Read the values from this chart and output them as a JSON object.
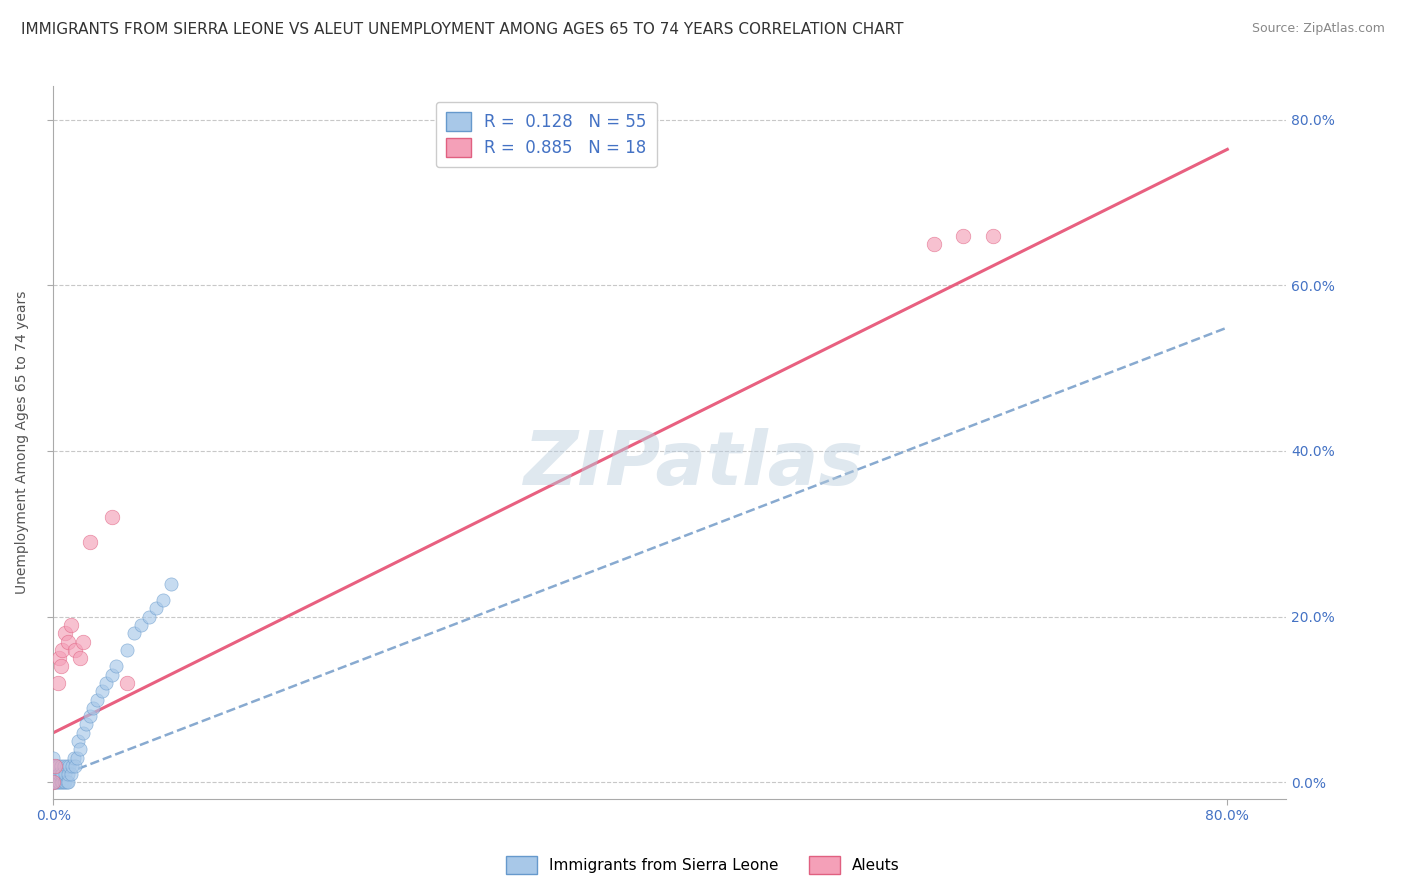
{
  "title": "IMMIGRANTS FROM SIERRA LEONE VS ALEUT UNEMPLOYMENT AMONG AGES 65 TO 74 YEARS CORRELATION CHART",
  "source": "Source: ZipAtlas.com",
  "ylabel": "Unemployment Among Ages 65 to 74 years",
  "ytick_labels": [
    "0.0%",
    "20.0%",
    "40.0%",
    "60.0%",
    "80.0%"
  ],
  "ytick_values": [
    0.0,
    0.2,
    0.4,
    0.6,
    0.8
  ],
  "xtick_left_label": "0.0%",
  "xtick_right_label": "80.0%",
  "xlim": [
    0.0,
    0.84
  ],
  "ylim": [
    -0.02,
    0.84
  ],
  "r_blue": 0.128,
  "n_blue": 55,
  "r_pink": 0.885,
  "n_pink": 18,
  "blue_scatter_x": [
    0.0,
    0.0,
    0.0,
    0.0,
    0.0,
    0.0,
    0.0,
    0.0,
    0.001,
    0.001,
    0.002,
    0.002,
    0.002,
    0.003,
    0.003,
    0.003,
    0.004,
    0.004,
    0.005,
    0.005,
    0.005,
    0.006,
    0.006,
    0.007,
    0.007,
    0.008,
    0.008,
    0.009,
    0.009,
    0.01,
    0.01,
    0.011,
    0.012,
    0.013,
    0.014,
    0.015,
    0.016,
    0.017,
    0.018,
    0.02,
    0.022,
    0.025,
    0.027,
    0.03,
    0.033,
    0.036,
    0.04,
    0.043,
    0.05,
    0.055,
    0.06,
    0.065,
    0.07,
    0.075,
    0.08
  ],
  "blue_scatter_y": [
    0.0,
    0.0,
    0.0,
    0.01,
    0.01,
    0.02,
    0.02,
    0.03,
    0.0,
    0.01,
    0.0,
    0.01,
    0.02,
    0.0,
    0.01,
    0.02,
    0.0,
    0.01,
    0.0,
    0.01,
    0.02,
    0.0,
    0.01,
    0.0,
    0.02,
    0.0,
    0.01,
    0.0,
    0.02,
    0.0,
    0.01,
    0.02,
    0.01,
    0.02,
    0.03,
    0.02,
    0.03,
    0.05,
    0.04,
    0.06,
    0.07,
    0.08,
    0.09,
    0.1,
    0.11,
    0.12,
    0.13,
    0.14,
    0.16,
    0.18,
    0.19,
    0.2,
    0.21,
    0.22,
    0.24
  ],
  "pink_scatter_x": [
    0.0,
    0.001,
    0.003,
    0.004,
    0.005,
    0.006,
    0.008,
    0.01,
    0.012,
    0.015,
    0.018,
    0.02,
    0.025,
    0.04,
    0.05,
    0.6,
    0.62,
    0.64
  ],
  "pink_scatter_y": [
    0.0,
    0.02,
    0.12,
    0.15,
    0.14,
    0.16,
    0.18,
    0.17,
    0.19,
    0.16,
    0.15,
    0.17,
    0.29,
    0.32,
    0.12,
    0.65,
    0.66,
    0.66
  ],
  "blue_line_y_intercept": 0.005,
  "blue_line_slope": 0.68,
  "pink_line_y_intercept": 0.06,
  "pink_line_slope": 0.88,
  "background_color": "#ffffff",
  "scatter_alpha": 0.65,
  "scatter_size_blue": 90,
  "scatter_size_pink": 110,
  "grid_color": "#c8c8c8",
  "title_fontsize": 11,
  "axis_label_fontsize": 10,
  "tick_fontsize": 10,
  "legend_label_blue": "Immigrants from Sierra Leone",
  "legend_label_pink": "Aleuts",
  "watermark": "ZIPatlas",
  "watermark_color": "#b8ccdd",
  "watermark_alpha": 0.45
}
